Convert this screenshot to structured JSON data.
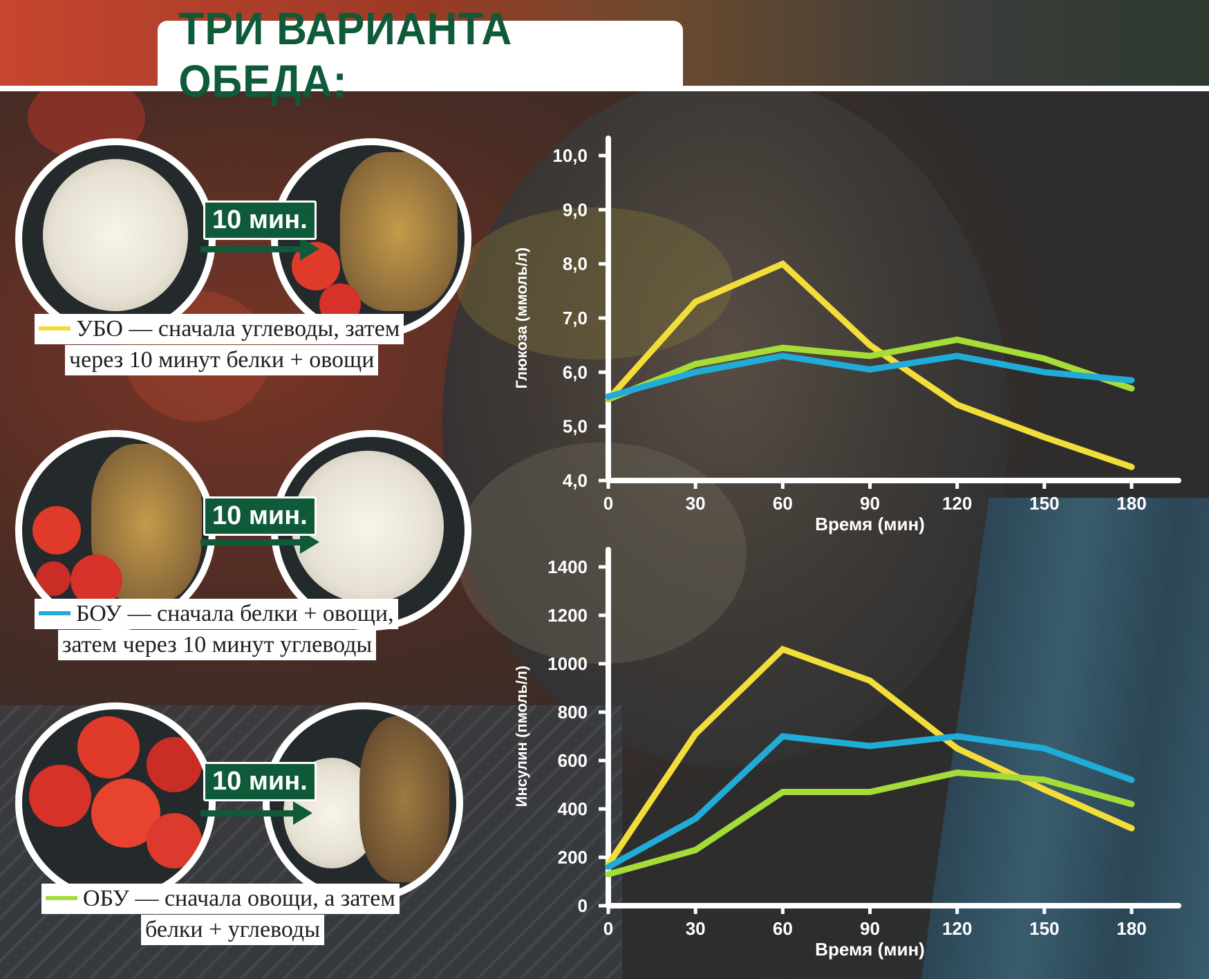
{
  "title": "ТРИ ВАРИАНТА ОБЕДА:",
  "badge_label": "10 мин.",
  "meals": [
    {
      "legend_color": "#f3dd3a",
      "caption_line1": "УБО — сначала углеводы, затем",
      "caption_line2": "через 10 минут белки + овощи",
      "first_plate": "rice",
      "second_plate": "fish-tomatoes"
    },
    {
      "legend_color": "#21acd8",
      "caption_line1": "БОУ — сначала белки + овощи,",
      "caption_line2": "затем через 10 минут углеводы",
      "first_plate": "fish-tomatoes",
      "second_plate": "rice"
    },
    {
      "legend_color": "#a6dc37",
      "caption_line1": "ОБУ — сначала овощи, а затем",
      "caption_line2": "белки + углеводы",
      "first_plate": "tomatoes",
      "second_plate": "fish-rice"
    }
  ],
  "chart_data": [
    {
      "type": "line",
      "title": "",
      "xlabel": "Время (мин)",
      "ylabel": "Глюкоза (ммоль/л)",
      "x": [
        0,
        30,
        60,
        90,
        120,
        150,
        180
      ],
      "xlim": [
        0,
        180
      ],
      "ylim": [
        4.0,
        10.0
      ],
      "x_ticks": [
        "0",
        "30",
        "60",
        "90",
        "120",
        "150",
        "180"
      ],
      "y_ticks": [
        "4,0",
        "5,0",
        "6,0",
        "7,0",
        "8,0",
        "9,0",
        "10,0"
      ],
      "y_tick_values": [
        4,
        5,
        6,
        7,
        8,
        9,
        10
      ],
      "grid": false,
      "series": [
        {
          "color": "#f3dd3a",
          "values": [
            5.5,
            7.3,
            8.0,
            6.5,
            5.4,
            4.8,
            4.25
          ]
        },
        {
          "color": "#a6dc37",
          "values": [
            5.5,
            6.15,
            6.45,
            6.3,
            6.6,
            6.25,
            5.7
          ]
        },
        {
          "color": "#21acd8",
          "values": [
            5.55,
            6.0,
            6.3,
            6.05,
            6.3,
            6.0,
            5.85
          ]
        }
      ]
    },
    {
      "type": "line",
      "title": "",
      "xlabel": "Время (мин)",
      "ylabel": "Инсулин (пмоль/л)",
      "x": [
        0,
        30,
        60,
        90,
        120,
        150,
        180
      ],
      "xlim": [
        0,
        180
      ],
      "ylim": [
        0,
        1400
      ],
      "x_ticks": [
        "0",
        "30",
        "60",
        "90",
        "120",
        "150",
        "180"
      ],
      "y_ticks": [
        "0",
        "200",
        "400",
        "600",
        "800",
        "1000",
        "1200",
        "1400"
      ],
      "y_tick_values": [
        0,
        200,
        400,
        600,
        800,
        1000,
        1200,
        1400
      ],
      "grid": false,
      "series": [
        {
          "color": "#f3dd3a",
          "values": [
            170,
            710,
            1060,
            930,
            650,
            480,
            320
          ]
        },
        {
          "color": "#21acd8",
          "values": [
            160,
            360,
            700,
            660,
            700,
            650,
            520
          ]
        },
        {
          "color": "#a6dc37",
          "values": [
            130,
            230,
            470,
            470,
            550,
            520,
            420
          ]
        }
      ]
    }
  ]
}
